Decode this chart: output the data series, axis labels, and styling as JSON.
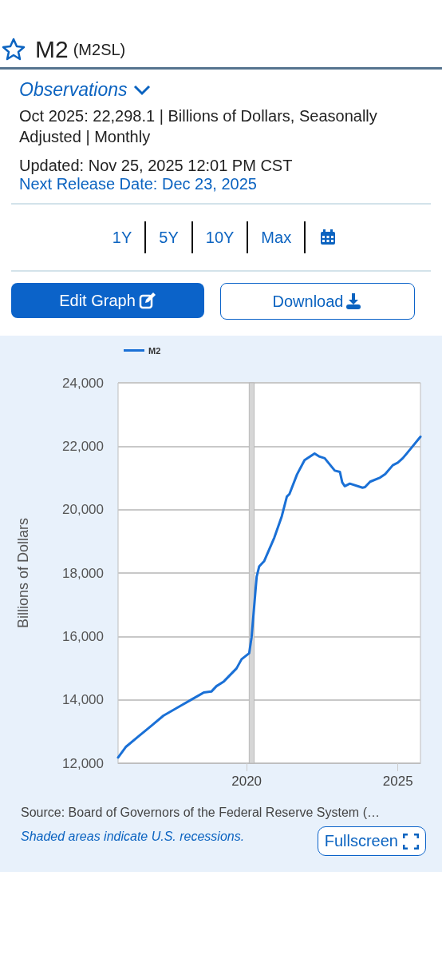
{
  "chart_data": {
    "type": "line",
    "title": "M2",
    "subtitle": "(M2SL)",
    "ylabel": "Billions of Dollars",
    "annotations": [
      "Observations",
      "Oct 2025: 22,298.1 | Billions of Dollars, Seasonally Adjusted | Monthly",
      "Updated: Nov 25, 2025 12:01 PM CST",
      "Next Release Date: Dec 23, 2025",
      "1Y",
      "5Y",
      "10Y",
      "Max",
      "Edit Graph",
      "Download",
      "Source: Board of Governors of the Federal Reserve System (…",
      "Shaded areas indicate U.S. recessions.",
      "Fullscreen"
    ],
    "series": [
      {
        "name": "M2",
        "color": "#1a70d6",
        "x": [
          "2015-10",
          "2016-01",
          "2016-06",
          "2016-11",
          "2017-04",
          "2017-11",
          "2018-03",
          "2018-08",
          "2018-11",
          "2019-01",
          "2019-04",
          "2019-09",
          "2019-11",
          "2020-02",
          "2020-03",
          "2020-05",
          "2020-06",
          "2020-08",
          "2020-12",
          "2021-03",
          "2021-05",
          "2021-06",
          "2021-09",
          "2021-12",
          "2022-04",
          "2022-06",
          "2022-08",
          "2022-12",
          "2023-02",
          "2023-03",
          "2023-04",
          "2023-06",
          "2023-11",
          "2023-12",
          "2024-02",
          "2024-06",
          "2024-08",
          "2024-11",
          "2025-01",
          "2025-03",
          "2025-05",
          "2025-10"
        ],
        "values": [
          12180,
          12510,
          12840,
          13170,
          13500,
          13820,
          14000,
          14230,
          14260,
          14430,
          14580,
          14990,
          15280,
          15470,
          15980,
          17880,
          18210,
          18380,
          19120,
          19790,
          20410,
          20490,
          21110,
          21560,
          21770,
          21670,
          21620,
          21230,
          21190,
          20860,
          20740,
          20820,
          20690,
          20710,
          20880,
          21010,
          21120,
          21400,
          21480,
          21620,
          21810,
          22298
        ]
      }
    ],
    "xlim": [
      "2015-10",
      "2025-10"
    ],
    "xticks": [
      "2020",
      "2025"
    ],
    "ylim": [
      12000,
      24000
    ],
    "yticks": [
      {
        "value": 12000,
        "label": "12,000"
      },
      {
        "value": 14000,
        "label": "14,000"
      },
      {
        "value": 16000,
        "label": "16,000"
      },
      {
        "value": 18000,
        "label": "18,000"
      },
      {
        "value": 20000,
        "label": "20,000"
      },
      {
        "value": 22000,
        "label": "22,000"
      },
      {
        "value": 24000,
        "label": "24,000"
      }
    ],
    "bands": [
      {
        "axis": "x",
        "from": "2020-02",
        "to": "2020-04",
        "color": "#d6d6d6"
      }
    ],
    "grid": "y",
    "legend": "top left",
    "marker": "none",
    "line_style": "solid"
  }
}
